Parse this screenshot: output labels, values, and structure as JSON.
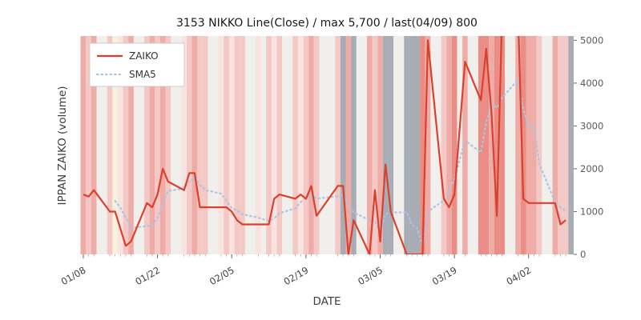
{
  "chart_data": {
    "type": "line",
    "title": "3153 NIKKO Line(Close) / max 5,700 / last(04/09) 800",
    "xlabel": "DATE",
    "ylabel": "IPPAN ZAIKO (volume)",
    "ylim": [
      0,
      5100
    ],
    "yticks": [
      0,
      1000,
      2000,
      3000,
      4000,
      5000
    ],
    "xtick_labels": [
      "01/08",
      "01/22",
      "02/05",
      "02/19",
      "03/05",
      "03/19",
      "04/02"
    ],
    "grid": false,
    "legend_position": "upper-left",
    "max_value": 5700,
    "last": {
      "date": "04/09",
      "value": 800
    },
    "dates": [
      "01/08",
      "01/09",
      "01/10",
      "01/13",
      "01/14",
      "01/15",
      "01/16",
      "01/17",
      "01/20",
      "01/21",
      "01/22",
      "01/23",
      "01/24",
      "01/27",
      "01/28",
      "01/29",
      "01/30",
      "01/31",
      "02/03",
      "02/04",
      "02/05",
      "02/06",
      "02/07",
      "02/10",
      "02/12",
      "02/13",
      "02/14",
      "02/17",
      "02/18",
      "02/19",
      "02/20",
      "02/21",
      "02/25",
      "02/26",
      "02/27",
      "02/28",
      "03/03",
      "03/04",
      "03/05",
      "03/06",
      "03/07",
      "03/10",
      "03/11",
      "03/12",
      "03/13",
      "03/14",
      "03/17",
      "03/18",
      "03/19",
      "03/21",
      "03/24",
      "03/25",
      "03/26",
      "03/27",
      "03/28",
      "03/31",
      "04/01",
      "04/02",
      "04/03",
      "04/04",
      "04/07",
      "04/08",
      "04/09"
    ],
    "series": [
      {
        "name": "ZAIKO",
        "color": "#d9412e",
        "style": "solid",
        "values": [
          1400,
          1350,
          1500,
          1000,
          1000,
          600,
          200,
          300,
          1200,
          1100,
          1400,
          2000,
          1700,
          1500,
          1900,
          1900,
          1100,
          1100,
          1100,
          1100,
          1000,
          800,
          700,
          700,
          700,
          1300,
          1400,
          1300,
          1400,
          1300,
          1600,
          900,
          1600,
          1600,
          0,
          800,
          0,
          1500,
          300,
          2100,
          1000,
          0,
          0,
          0,
          0,
          5000,
          1300,
          1100,
          1400,
          4500,
          3600,
          4800,
          3300,
          900,
          5700,
          5700,
          1300,
          1200,
          1200,
          1200,
          1200,
          700,
          800
        ]
      },
      {
        "name": "SMA5",
        "color": "#a9c5e4",
        "style": "dotted",
        "derived_from": "ZAIKO",
        "window": 5
      }
    ],
    "band_colors": [
      "P3",
      "P2",
      "P3",
      "P2",
      "CR",
      "P1",
      "P2",
      "P3",
      "P2",
      "P3",
      "P2",
      "P3",
      "P2",
      "P1",
      "P2",
      "P3",
      "P2",
      "P2",
      "P1",
      "P2",
      "P1",
      "P2",
      "P2",
      "P1",
      "P2",
      "P1",
      "P2",
      "P2",
      "P1",
      "P2",
      "P3",
      "P2",
      "P2",
      "GY",
      "P3",
      "GY",
      "P3",
      "P2",
      "P3",
      "GY",
      "GY",
      "GY",
      "GY",
      "GY",
      "P4",
      "P3",
      "P2",
      "P3",
      "P4",
      "P3",
      "P4",
      "P4",
      "P3",
      "P4",
      "P4",
      "P3",
      "P4",
      "P3",
      "P3",
      "P2",
      "P3",
      "P2",
      "P2"
    ],
    "palette": {
      "P1": "#f9e3e1",
      "P2": "#f4c8c4",
      "P3": "#efaca7",
      "P4": "#e98d86",
      "CR": "#f8f1dd",
      "GY": "#a8acb4"
    },
    "edge_band_color": "GY",
    "colors": {
      "plot_bg": "#f1efec",
      "tick_text": "#595959",
      "tick_mark": "#666666",
      "minor_tick": "#999999"
    }
  }
}
